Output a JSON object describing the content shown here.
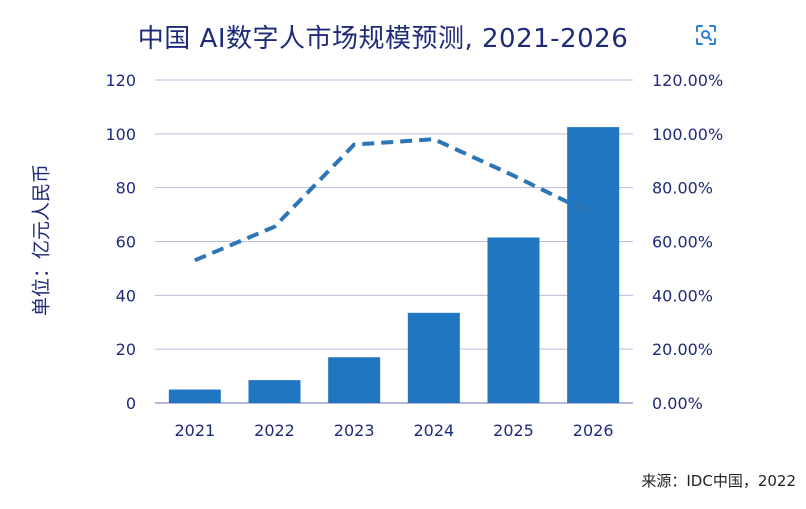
{
  "chart_data": {
    "type": "bar",
    "title": "中国 AI数字人市场规模预测, 2021-2026",
    "ylabel": "单位：亿元人民币",
    "source": "来源：IDC中国，2022",
    "categories": [
      "2021",
      "2022",
      "2023",
      "2024",
      "2025",
      "2026"
    ],
    "ylim": [
      0,
      120
    ],
    "yticks": [
      0,
      20,
      40,
      60,
      80,
      100,
      120
    ],
    "y2lim": [
      0,
      1.2
    ],
    "y2ticks": [
      "0.00%",
      "20.00%",
      "40.00%",
      "60.00%",
      "80.00%",
      "100.00%",
      "120.00%"
    ],
    "grid": true,
    "series": [
      {
        "type": "bar",
        "axis": "left",
        "color": "#2076c0",
        "values": [
          5,
          8.5,
          17,
          33.5,
          61.5,
          102.5
        ]
      },
      {
        "type": "line",
        "axis": "right",
        "style": "dashed",
        "color": "#2e75b5",
        "values": [
          0.53,
          0.655,
          0.96,
          0.98,
          0.845,
          0.7
        ]
      }
    ]
  },
  "icons": {
    "expand": "expand-icon"
  }
}
